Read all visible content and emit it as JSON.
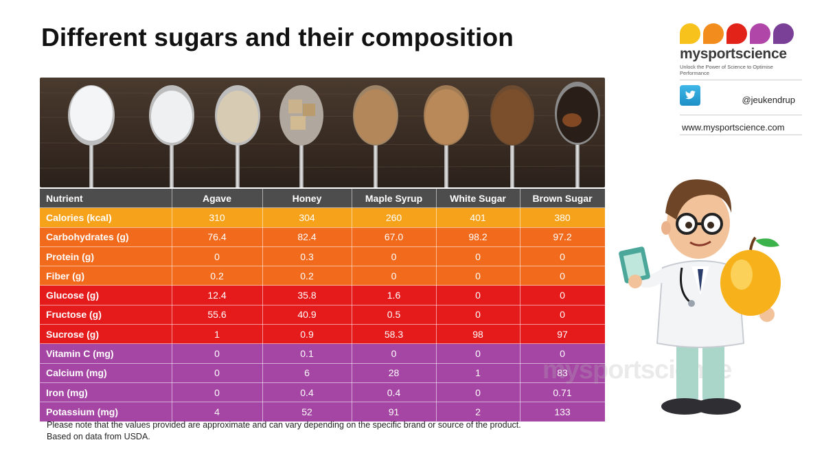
{
  "title": "Different sugars and their composition",
  "brand": {
    "name": "mysportscience",
    "tagline": "Unlock the Power of Science to Optimise Performance",
    "dot_colors": [
      "#f7c21b",
      "#f28c1c",
      "#e2231a",
      "#b046a8",
      "#7a3f96"
    ],
    "twitter_handle": "@jeukendrup",
    "website": "www.mysportscience.com"
  },
  "watermark": "mysportscience",
  "table": {
    "headers": [
      "Nutrient",
      "Agave",
      "Honey",
      "Maple Syrup",
      "White Sugar",
      "Brown Sugar"
    ],
    "rows": [
      {
        "color": "#f7a21b",
        "cells": [
          "Calories (kcal)",
          "310",
          "304",
          "260",
          "401",
          "380"
        ]
      },
      {
        "color": "#f26b1d",
        "cells": [
          "Carbohydrates (g)",
          "76.4",
          "82.4",
          "67.0",
          "98.2",
          "97.2"
        ]
      },
      {
        "color": "#f26b1d",
        "cells": [
          "Protein (g)",
          "0",
          "0.3",
          "0",
          "0",
          "0"
        ]
      },
      {
        "color": "#f26b1d",
        "cells": [
          "Fiber (g)",
          "0.2",
          "0.2",
          "0",
          "0",
          "0"
        ]
      },
      {
        "color": "#e51b1b",
        "cells": [
          "Glucose (g)",
          "12.4",
          "35.8",
          "1.6",
          "0",
          "0"
        ]
      },
      {
        "color": "#e51b1b",
        "cells": [
          "Fructose (g)",
          "55.6",
          "40.9",
          "0.5",
          "0",
          "0"
        ]
      },
      {
        "color": "#e51b1b",
        "cells": [
          "Sucrose (g)",
          "1",
          "0.9",
          "58.3",
          "98",
          "97"
        ]
      },
      {
        "color": "#a546a5",
        "cells": [
          "Vitamin C (mg)",
          "0",
          "0.1",
          "0",
          "0",
          "0"
        ]
      },
      {
        "color": "#a546a5",
        "cells": [
          "Calcium (mg)",
          "0",
          "6",
          "28",
          "1",
          "83"
        ]
      },
      {
        "color": "#a546a5",
        "cells": [
          "Iron (mg)",
          "0",
          "0.4",
          "0.4",
          "0",
          "0.71"
        ]
      },
      {
        "color": "#a546a5",
        "cells": [
          "Potassium (mg)",
          "4",
          "52",
          "91",
          "2",
          "133"
        ]
      }
    ]
  },
  "note": {
    "line1": "Please note that the values provided are approximate and can vary depending on the specific brand or source of the product.",
    "line2": "Based on data from USDA."
  }
}
